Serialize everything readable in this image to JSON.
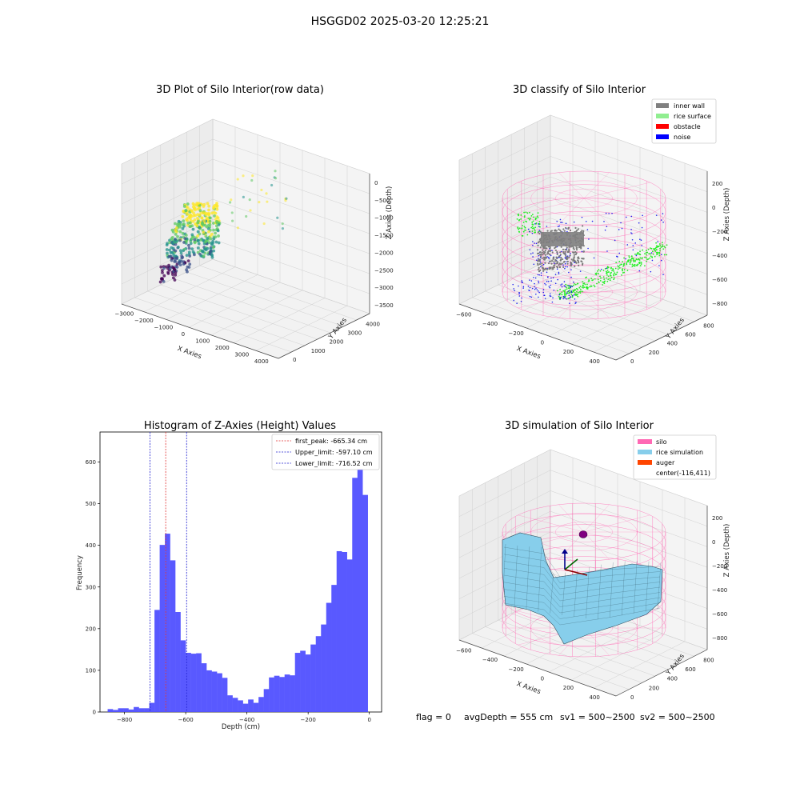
{
  "figure": {
    "suptitle": "HSGGD02 2025-03-20 12:25:21",
    "footer": {
      "flag": "flag = 0",
      "avg_depth": "avgDepth = 555 cm",
      "sv1": "sv1 = 500~2500",
      "sv2": "sv2 = 500~2500"
    }
  },
  "colors": {
    "hist_bar": "#5050ff",
    "peak_line": "#e03030",
    "limit_line": "#2020d0",
    "wall": "#808080",
    "rice_surface": "#90ee90",
    "obstacle": "#ff0000",
    "noise": "#0000ff",
    "silo": "#ff69b4",
    "rice_sim": "#87ceeb",
    "auger": "#ff4500",
    "pane": "#f2f2f2"
  },
  "chart_data": [
    {
      "type": "scatter",
      "title": "3D Plot of Silo Interior(row data)",
      "xlabel": "X Axies",
      "ylabel": "Y Axies",
      "zlabel": "Z Axies (Depth)",
      "x_ticks": [
        "−3000",
        "−2000",
        "−1000",
        "0",
        "1000",
        "2000",
        "3000",
        "4000"
      ],
      "y_ticks": [
        "0",
        "1000",
        "2000",
        "3000",
        "4000"
      ],
      "z_ticks": [
        "0",
        "−500",
        "−1000",
        "−1500",
        "−2000",
        "−2500",
        "−3000",
        "−3500"
      ],
      "colormap": "viridis"
    },
    {
      "type": "scatter",
      "title": "3D classify of Silo Interior",
      "xlabel": "X Axies",
      "ylabel": "Y Axies",
      "zlabel": "Z Axies (Depth)",
      "x_ticks": [
        "−600",
        "−400",
        "−200",
        "0",
        "200",
        "400"
      ],
      "y_ticks": [
        "0",
        "200",
        "400",
        "600",
        "800"
      ],
      "z_ticks": [
        "200",
        "0",
        "−200",
        "−400",
        "−600",
        "−800"
      ],
      "legend": [
        "inner wall",
        "rice surface",
        "obstacle",
        "noise"
      ],
      "legend_position": "top-right"
    },
    {
      "type": "bar",
      "title": "Histogram of Z-Axies (Height) Values",
      "xlabel": "Depth (cm)",
      "ylabel": "Frequency",
      "xlim": [
        -880,
        40
      ],
      "ylim": [
        0,
        672
      ],
      "x_ticks": [
        -800,
        -600,
        -400,
        -200,
        0
      ],
      "y_ticks": [
        0,
        100,
        200,
        300,
        400,
        500,
        600
      ],
      "bin_width": 17,
      "bin_start": -855,
      "values": [
        7,
        5,
        9,
        9,
        6,
        12,
        9,
        9,
        22,
        245,
        401,
        428,
        364,
        240,
        172,
        142,
        140,
        141,
        117,
        100,
        97,
        93,
        82,
        40,
        34,
        28,
        20,
        30,
        22,
        36,
        55,
        83,
        87,
        84,
        90,
        88,
        142,
        147,
        138,
        162,
        182,
        210,
        262,
        305,
        386,
        384,
        366,
        562,
        628,
        521
      ],
      "vlines": [
        {
          "label": "first_peak: -665.34 cm",
          "x": -665.34,
          "color": "peak"
        },
        {
          "label": "Upper_limit: -597.10 cm",
          "x": -597.1,
          "color": "limit"
        },
        {
          "label": "Lower_limit: -716.52 cm",
          "x": -716.52,
          "color": "limit"
        }
      ],
      "legend_position": "top-right"
    },
    {
      "type": "surface",
      "title": "3D simulation of Silo Interior",
      "xlabel": "X Axies",
      "ylabel": "Y Axies",
      "zlabel": "Z Axies (Depth)",
      "x_ticks": [
        "−600",
        "−400",
        "−200",
        "0",
        "200",
        "400"
      ],
      "y_ticks": [
        "0",
        "200",
        "400",
        "600",
        "800"
      ],
      "z_ticks": [
        "200",
        "0",
        "−200",
        "−400",
        "−600",
        "−800"
      ],
      "legend": [
        "silo",
        "rice simulation",
        "auger",
        "center(-116,411)"
      ],
      "legend_position": "top-right"
    }
  ]
}
